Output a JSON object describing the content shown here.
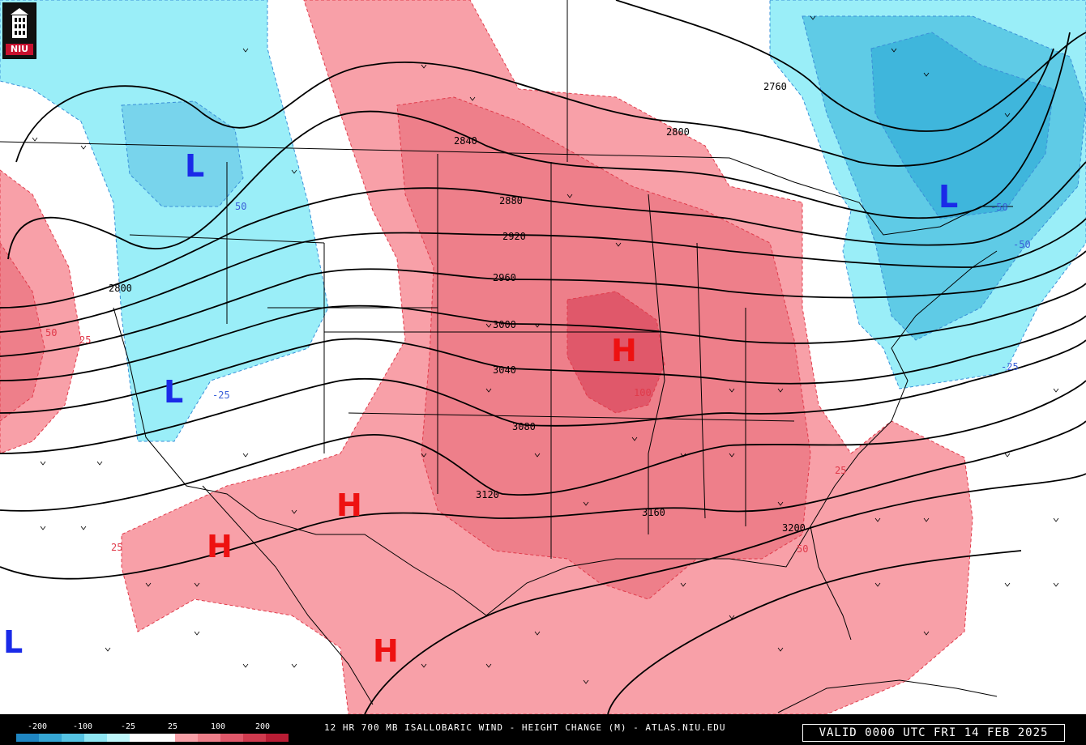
{
  "logo": {
    "text": "NIU"
  },
  "map": {
    "highs_lows": [
      {
        "type": "L",
        "color": "#1a2ae8"
      },
      {
        "type": "L",
        "color": "#1a2ae8"
      },
      {
        "type": "L",
        "color": "#1a2ae8"
      },
      {
        "type": "L",
        "color": "#1a2ae8"
      },
      {
        "type": "H",
        "color": "#ee1111"
      },
      {
        "type": "H",
        "color": "#ee1111"
      },
      {
        "type": "H",
        "color": "#ee1111"
      },
      {
        "type": "H",
        "color": "#ee1111"
      }
    ],
    "height_contours": [
      "2760",
      "2800",
      "2840",
      "2880",
      "2920",
      "2960",
      "3000",
      "3040",
      "3080",
      "3120",
      "3160",
      "3200",
      "2800"
    ],
    "isallobar_labels": [
      "50",
      "25",
      "50",
      "-25",
      "-50",
      "-50",
      "-25",
      "100",
      "25",
      "50",
      "25"
    ]
  },
  "footer": {
    "scale": [
      "-200",
      "-100",
      "-25",
      "25",
      "100",
      "200"
    ],
    "scale_colors": [
      "#1f86c2",
      "#35a6d4",
      "#55c3e3",
      "#8ee6f3",
      "#bff7fb",
      "#ffffff",
      "#ffffff",
      "#f8a0a8",
      "#ee7f8a",
      "#e0586a",
      "#cf3a4e",
      "#b81c34"
    ],
    "title": "12 HR 700 MB ISALLOBARIC WIND - HEIGHT CHANGE (M) - ATLAS.NIU.EDU",
    "valid": "VALID 0000 UTC FRI 14 FEB 2025"
  }
}
